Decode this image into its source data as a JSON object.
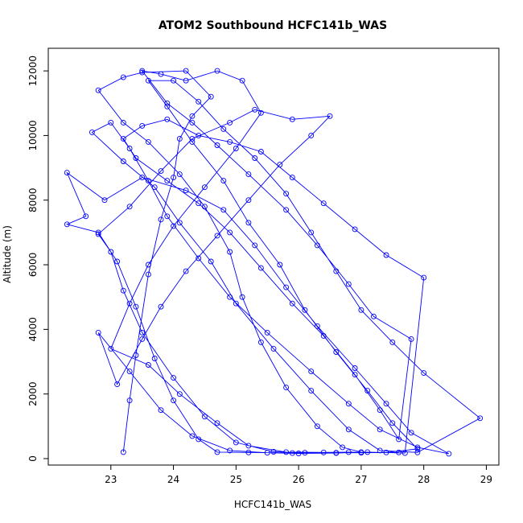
{
  "chart_data": {
    "type": "scatter",
    "title": "ATOM2 Southbound HCFC141b_WAS",
    "xlabel": "HCFC141b_WAS",
    "ylabel": "Altitude (m)",
    "xlim": [
      22.0,
      29.2
    ],
    "ylim": [
      -200,
      12700
    ],
    "x_ticks": [
      23,
      24,
      25,
      26,
      27,
      28,
      29
    ],
    "y_ticks": [
      0,
      2000,
      4000,
      6000,
      8000,
      10000,
      12000
    ],
    "grid": false,
    "legend": "none",
    "color": "#0000ff",
    "series": [
      {
        "style": "points-connected",
        "points": [
          [
            23.2,
            200
          ],
          [
            23.3,
            1800
          ],
          [
            23.4,
            3200
          ],
          [
            23.6,
            5700
          ],
          [
            23.8,
            7400
          ],
          [
            24.0,
            8700
          ],
          [
            24.1,
            9900
          ],
          [
            24.3,
            10600
          ],
          [
            24.6,
            11200
          ],
          [
            24.2,
            12000
          ],
          [
            23.5,
            11950
          ],
          [
            23.2,
            11800
          ],
          [
            22.8,
            11400
          ],
          [
            23.2,
            10400
          ],
          [
            23.6,
            9800
          ],
          [
            24.1,
            8800
          ],
          [
            24.5,
            7800
          ],
          [
            24.9,
            6400
          ],
          [
            25.1,
            5000
          ],
          [
            25.4,
            3600
          ],
          [
            25.8,
            2200
          ],
          [
            26.3,
            1000
          ],
          [
            26.7,
            350
          ],
          [
            27.0,
            200
          ],
          [
            26.6,
            180
          ],
          [
            25.9,
            170
          ],
          [
            25.2,
            190
          ],
          [
            24.7,
            200
          ],
          [
            24.4,
            600
          ],
          [
            24.0,
            1800
          ],
          [
            23.7,
            3100
          ],
          [
            23.4,
            4700
          ],
          [
            23.1,
            6100
          ],
          [
            22.8,
            7000
          ],
          [
            22.3,
            7250
          ],
          [
            22.6,
            7500
          ],
          [
            22.3,
            8850
          ],
          [
            22.9,
            8000
          ],
          [
            23.5,
            8700
          ],
          [
            24.2,
            8300
          ],
          [
            24.8,
            7700
          ],
          [
            25.3,
            6600
          ],
          [
            25.8,
            5300
          ],
          [
            26.3,
            4100
          ],
          [
            26.9,
            2800
          ],
          [
            27.4,
            1700
          ],
          [
            27.8,
            800
          ],
          [
            28.4,
            150
          ],
          [
            27.9,
            350
          ],
          [
            27.3,
            900
          ],
          [
            26.8,
            1700
          ],
          [
            26.2,
            2700
          ],
          [
            25.5,
            3900
          ],
          [
            24.9,
            5000
          ],
          [
            24.4,
            6200
          ],
          [
            23.9,
            7500
          ],
          [
            23.6,
            8600
          ],
          [
            23.3,
            9600
          ],
          [
            23.0,
            10400
          ],
          [
            22.7,
            10100
          ],
          [
            23.2,
            9200
          ],
          [
            23.7,
            8400
          ],
          [
            24.1,
            7300
          ],
          [
            24.6,
            6100
          ],
          [
            25.0,
            4800
          ],
          [
            25.6,
            3400
          ],
          [
            26.2,
            2100
          ],
          [
            26.8,
            900
          ],
          [
            27.3,
            250
          ],
          [
            27.9,
            190
          ],
          [
            28.9,
            1250
          ],
          [
            28.0,
            2650
          ],
          [
            27.5,
            3600
          ],
          [
            27.0,
            4600
          ],
          [
            26.6,
            5800
          ],
          [
            26.2,
            7000
          ],
          [
            25.8,
            8200
          ],
          [
            25.3,
            9300
          ],
          [
            24.8,
            10200
          ],
          [
            24.4,
            11050
          ],
          [
            24.0,
            11700
          ],
          [
            23.6,
            11700
          ],
          [
            23.9,
            10900
          ],
          [
            24.3,
            9800
          ],
          [
            24.8,
            8600
          ],
          [
            25.2,
            7300
          ],
          [
            25.7,
            6000
          ],
          [
            26.1,
            4600
          ],
          [
            26.6,
            3300
          ],
          [
            27.1,
            2100
          ],
          [
            27.5,
            1100
          ],
          [
            27.9,
            300
          ],
          [
            27.4,
            190
          ],
          [
            26.8,
            200
          ],
          [
            26.1,
            180
          ],
          [
            25.6,
            210
          ],
          [
            25.0,
            500
          ],
          [
            24.5,
            1300
          ],
          [
            24.0,
            2500
          ],
          [
            23.5,
            3900
          ],
          [
            23.2,
            5200
          ],
          [
            23.0,
            6400
          ],
          [
            22.8,
            6950
          ],
          [
            23.3,
            7800
          ],
          [
            23.8,
            8900
          ],
          [
            24.3,
            9900
          ],
          [
            24.9,
            10400
          ],
          [
            25.3,
            10800
          ],
          [
            25.9,
            10500
          ],
          [
            26.5,
            10600
          ],
          [
            26.2,
            10000
          ],
          [
            25.7,
            9100
          ],
          [
            25.2,
            8000
          ],
          [
            24.7,
            6900
          ],
          [
            24.2,
            5800
          ],
          [
            23.8,
            4700
          ],
          [
            23.5,
            3700
          ],
          [
            23.1,
            2300
          ],
          [
            22.8,
            3900
          ],
          [
            23.3,
            2700
          ],
          [
            23.8,
            1500
          ],
          [
            24.3,
            700
          ],
          [
            24.9,
            250
          ],
          [
            25.5,
            180
          ],
          [
            26.0,
            160
          ],
          [
            26.6,
            170
          ],
          [
            27.1,
            200
          ],
          [
            27.7,
            170
          ],
          [
            28.0,
            5600
          ],
          [
            27.4,
            6300
          ],
          [
            26.9,
            7100
          ],
          [
            26.4,
            7900
          ],
          [
            25.9,
            8700
          ],
          [
            25.4,
            9500
          ],
          [
            24.9,
            9800
          ],
          [
            24.4,
            10000
          ],
          [
            23.9,
            10500
          ],
          [
            23.5,
            10300
          ],
          [
            23.2,
            9900
          ],
          [
            23.4,
            9300
          ],
          [
            23.9,
            8600
          ],
          [
            24.4,
            7900
          ],
          [
            24.9,
            7000
          ],
          [
            25.4,
            5900
          ],
          [
            25.9,
            4800
          ],
          [
            26.4,
            3800
          ],
          [
            26.9,
            2600
          ],
          [
            27.3,
            1500
          ],
          [
            27.6,
            600
          ],
          [
            27.8,
            3700
          ],
          [
            27.2,
            4400
          ],
          [
            26.8,
            5400
          ],
          [
            26.3,
            6600
          ],
          [
            25.8,
            7700
          ],
          [
            25.2,
            8800
          ],
          [
            24.7,
            9700
          ],
          [
            24.3,
            10400
          ],
          [
            23.9,
            11000
          ],
          [
            23.5,
            12000
          ],
          [
            23.8,
            11900
          ],
          [
            24.2,
            11700
          ],
          [
            24.7,
            12000
          ],
          [
            25.1,
            11700
          ],
          [
            25.4,
            10700
          ],
          [
            25.0,
            9600
          ],
          [
            24.5,
            8400
          ],
          [
            24.0,
            7200
          ],
          [
            23.6,
            6000
          ],
          [
            23.3,
            4800
          ],
          [
            23.0,
            3400
          ],
          [
            23.6,
            2900
          ],
          [
            24.1,
            2000
          ],
          [
            24.7,
            1100
          ],
          [
            25.2,
            400
          ],
          [
            25.8,
            200
          ],
          [
            26.4,
            190
          ],
          [
            27.0,
            180
          ],
          [
            27.6,
            190
          ]
        ]
      }
    ]
  }
}
